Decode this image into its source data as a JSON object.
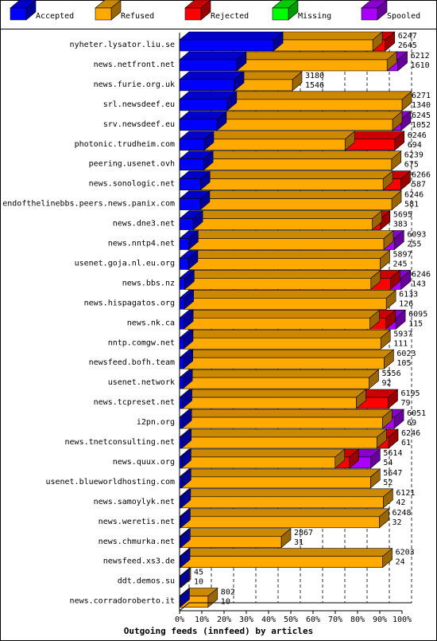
{
  "chart_data": {
    "type": "bar",
    "orientation": "horizontal",
    "stacked": true,
    "title": "Outgoing feeds (innfeed) by articles",
    "legend": [
      {
        "name": "Accepted",
        "color": "#0000ff"
      },
      {
        "name": "Refused",
        "color": "#ffaa00"
      },
      {
        "name": "Rejected",
        "color": "#ff0000"
      },
      {
        "name": "Missing",
        "color": "#00ff00"
      },
      {
        "name": "Spooled",
        "color": "#aa00ff"
      }
    ],
    "legend_position": "top",
    "x_ticks": [
      "0%",
      "10%",
      "20%",
      "30%",
      "40%",
      "50%",
      "60%",
      "70%",
      "80%",
      "90%",
      "100%"
    ],
    "x_range": [
      0,
      100
    ],
    "grid": "vertical dashed",
    "bar_scale_max": 6271,
    "rows": [
      {
        "name": "nyheter.lysator.liu.se",
        "total": 6247,
        "accepted": 2645,
        "refused": 2800,
        "rejected": 350,
        "missing": 0,
        "spooled": 0
      },
      {
        "name": "news.netfront.net",
        "total": 6212,
        "accepted": 1610,
        "refused": 4240,
        "rejected": 0,
        "missing": 0,
        "spooled": 300
      },
      {
        "name": "news.furie.org.uk",
        "total": 3180,
        "accepted": 1546,
        "refused": 1634,
        "rejected": 0,
        "missing": 0,
        "spooled": 0
      },
      {
        "name": "srl.newsdeef.eu",
        "total": 6271,
        "accepted": 1340,
        "refused": 4931,
        "rejected": 0,
        "missing": 0,
        "spooled": 0
      },
      {
        "name": "srv.newsdeef.eu",
        "total": 6245,
        "accepted": 1052,
        "refused": 4950,
        "rejected": 0,
        "missing": 0,
        "spooled": 243
      },
      {
        "name": "photonic.trudheim.com",
        "total": 6246,
        "accepted": 694,
        "refused": 3970,
        "rejected": 1400,
        "missing": 0,
        "spooled": 0
      },
      {
        "name": "peering.usenet.ovh",
        "total": 6239,
        "accepted": 675,
        "refused": 5300,
        "rejected": 0,
        "missing": 0,
        "spooled": 0
      },
      {
        "name": "news.sonologic.net",
        "total": 6266,
        "accepted": 587,
        "refused": 5150,
        "rejected": 500,
        "missing": 0,
        "spooled": 0
      },
      {
        "name": "endofthelinebbs.peers.news.panix.com",
        "total": 6246,
        "accepted": 581,
        "refused": 5400,
        "rejected": 0,
        "missing": 0,
        "spooled": 0
      },
      {
        "name": "news.dne3.net",
        "total": 5695,
        "accepted": 383,
        "refused": 5050,
        "rejected": 230,
        "missing": 0,
        "spooled": 0
      },
      {
        "name": "news.nntp4.net",
        "total": 6093,
        "accepted": 255,
        "refused": 5500,
        "rejected": 0,
        "missing": 0,
        "spooled": 300
      },
      {
        "name": "usenet.goja.nl.eu.org",
        "total": 5897,
        "accepted": 245,
        "refused": 5410,
        "rejected": 0,
        "missing": 0,
        "spooled": 0
      },
      {
        "name": "news.bbs.nz",
        "total": 6246,
        "accepted": 143,
        "refused": 5250,
        "rejected": 550,
        "missing": 0,
        "spooled": 300
      },
      {
        "name": "news.hispagatos.org",
        "total": 6133,
        "accepted": 126,
        "refused": 5700,
        "rejected": 0,
        "missing": 0,
        "spooled": 0
      },
      {
        "name": "news.nk.ca",
        "total": 6095,
        "accepted": 115,
        "refused": 5250,
        "rejected": 450,
        "missing": 0,
        "spooled": 280
      },
      {
        "name": "nntp.comgw.net",
        "total": 5937,
        "accepted": 111,
        "refused": 5560,
        "rejected": 0,
        "missing": 0,
        "spooled": 0
      },
      {
        "name": "newsfeed.bofh.team",
        "total": 6023,
        "accepted": 105,
        "refused": 5660,
        "rejected": 0,
        "missing": 0,
        "spooled": 0
      },
      {
        "name": "usenet.network",
        "total": 5556,
        "accepted": 92,
        "refused": 5250,
        "rejected": 0,
        "missing": 0,
        "spooled": 0
      },
      {
        "name": "news.tcpreset.net",
        "total": 6195,
        "accepted": 79,
        "refused": 4900,
        "rejected": 900,
        "missing": 0,
        "spooled": 0
      },
      {
        "name": "i2pn.org",
        "total": 6051,
        "accepted": 69,
        "refused": 5650,
        "rejected": 0,
        "missing": 0,
        "spooled": 330
      },
      {
        "name": "news.tnetconsulting.net",
        "total": 6246,
        "accepted": 61,
        "refused": 5500,
        "rejected": 330,
        "missing": 0,
        "spooled": 0
      },
      {
        "name": "news.quux.org",
        "total": 5614,
        "accepted": 54,
        "refused": 4330,
        "rejected": 400,
        "missing": 0,
        "spooled": 600
      },
      {
        "name": "usenet.blueworldhosting.com",
        "total": 5647,
        "accepted": 52,
        "refused": 5330,
        "rejected": 0,
        "missing": 0,
        "spooled": 0
      },
      {
        "name": "news.samoylyk.net",
        "total": 6121,
        "accepted": 42,
        "refused": 5700,
        "rejected": 0,
        "missing": 0,
        "spooled": 0
      },
      {
        "name": "news.weretis.net",
        "total": 6248,
        "accepted": 32,
        "refused": 5600,
        "rejected": 0,
        "missing": 0,
        "spooled": 0
      },
      {
        "name": "news.chmurka.net",
        "total": 2867,
        "accepted": 31,
        "refused": 2836,
        "rejected": 0,
        "missing": 0,
        "spooled": 0
      },
      {
        "name": "newsfeed.xs3.de",
        "total": 6203,
        "accepted": 24,
        "refused": 5700,
        "rejected": 0,
        "missing": 0,
        "spooled": 0
      },
      {
        "name": "ddt.demos.su",
        "total": 45,
        "accepted": 10,
        "refused": 35,
        "rejected": 0,
        "missing": 0,
        "spooled": 0
      },
      {
        "name": "news.corradoroberto.it",
        "total": 802,
        "accepted": 10,
        "refused": 792,
        "rejected": 0,
        "missing": 0,
        "spooled": 0
      }
    ]
  }
}
